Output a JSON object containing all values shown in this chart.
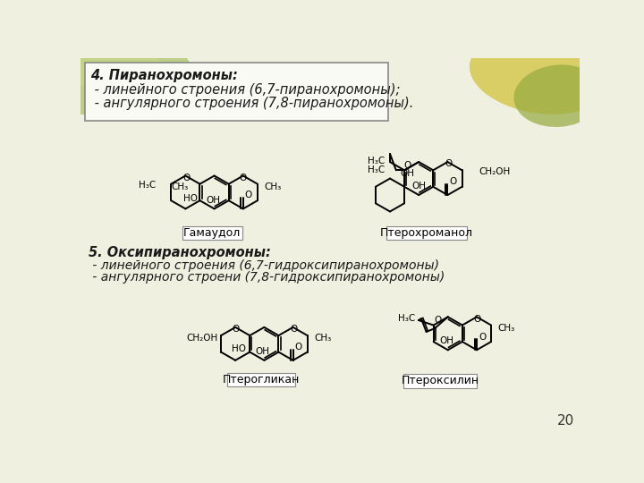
{
  "background_color": "#f0f0e0",
  "box_text_line1": "4. Пиранохромоны:",
  "box_text_line2": " - линейного строения (6,7-пиранохромоны);",
  "box_text_line3": " - ангулярного строения (7,8-пиранохромоны).",
  "label1": "Гамаудол",
  "label2": "Птерохроманол",
  "section5_line1": "5. Оксипиранохромоны:",
  "section5_line2": " - линейного строения (6,7-гидроксипиранохромоны)",
  "section5_line3": " - ангулярного строени (7,8-гидроксипиранохромоны)",
  "label3": "Птерогликан",
  "label4": "Птероксилин",
  "page_num": "20"
}
